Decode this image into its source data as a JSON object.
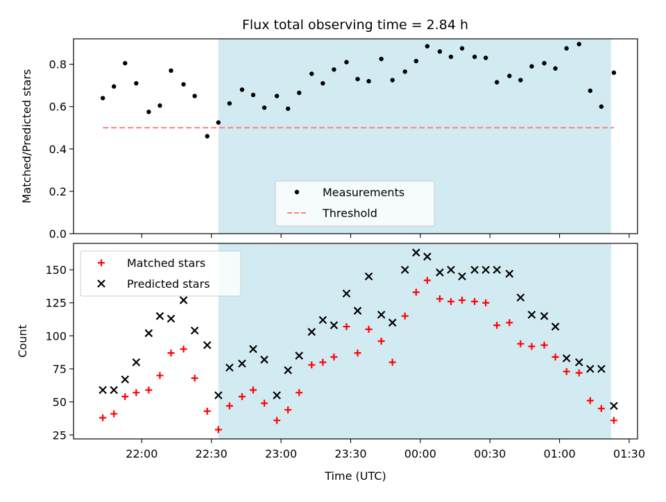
{
  "chart_data": {
    "title": "Flux total observing time = 2.84 h",
    "xlabel": "Time (UTC)",
    "x_ticks": [
      "22:00",
      "22:30",
      "23:00",
      "23:30",
      "00:00",
      "00:30",
      "01:00",
      "01:30"
    ],
    "x_tick_hours": [
      22.0,
      22.5,
      23.0,
      23.5,
      24.0,
      24.5,
      25.0,
      25.5
    ],
    "xlim": [
      21.51,
      25.56
    ],
    "shaded_span": {
      "x_start": 22.55,
      "x_end": 25.37,
      "color": "#add8e6"
    },
    "panels": [
      {
        "type": "scatter",
        "ylabel": "Matched/Predicted stars",
        "ylim": [
          0,
          0.92
        ],
        "y_ticks": [
          "0.0",
          "0.2",
          "0.4",
          "0.6",
          "0.8"
        ],
        "y_tick_values": [
          0,
          0.2,
          0.4,
          0.6,
          0.8
        ],
        "legend_position": "lower-center",
        "series": [
          {
            "name": "Measurements",
            "marker": "dot",
            "color": "#000000",
            "x": [
              21.72,
              21.8,
              21.88,
              21.96,
              22.05,
              22.13,
              22.21,
              22.3,
              22.38,
              22.47,
              22.55,
              22.63,
              22.72,
              22.8,
              22.88,
              22.97,
              23.05,
              23.13,
              23.22,
              23.3,
              23.38,
              23.47,
              23.55,
              23.63,
              23.72,
              23.8,
              23.89,
              23.97,
              24.05,
              24.14,
              24.22,
              24.3,
              24.39,
              24.47,
              24.55,
              24.64,
              24.72,
              24.8,
              24.89,
              24.97,
              25.05,
              25.14,
              25.22,
              25.3,
              25.39
            ],
            "y": [
              0.64,
              0.695,
              0.805,
              0.71,
              0.575,
              0.605,
              0.77,
              0.705,
              0.65,
              0.46,
              0.525,
              0.615,
              0.68,
              0.655,
              0.595,
              0.65,
              0.59,
              0.665,
              0.755,
              0.71,
              0.775,
              0.81,
              0.73,
              0.72,
              0.825,
              0.725,
              0.765,
              0.815,
              0.885,
              0.86,
              0.835,
              0.875,
              0.835,
              0.83,
              0.715,
              0.745,
              0.725,
              0.79,
              0.805,
              0.78,
              0.875,
              0.895,
              0.675,
              0.6,
              0.76
            ]
          },
          {
            "name": "Threshold",
            "marker": "dashed-line",
            "color": "#ff7f7f",
            "x": [
              21.72,
              25.39
            ],
            "y": [
              0.5,
              0.5
            ]
          }
        ]
      },
      {
        "type": "scatter",
        "ylabel": "Count",
        "ylim": [
          22,
          170
        ],
        "y_ticks": [
          "25",
          "50",
          "75",
          "100",
          "125",
          "150"
        ],
        "y_tick_values": [
          25,
          50,
          75,
          100,
          125,
          150
        ],
        "legend_position": "upper-left",
        "series": [
          {
            "name": "Matched stars",
            "marker": "plus",
            "color": "#ff0000",
            "x": [
              21.72,
              21.8,
              21.88,
              21.96,
              22.05,
              22.13,
              22.21,
              22.3,
              22.38,
              22.47,
              22.55,
              22.63,
              22.72,
              22.8,
              22.88,
              22.97,
              23.05,
              23.13,
              23.22,
              23.3,
              23.38,
              23.47,
              23.55,
              23.63,
              23.72,
              23.8,
              23.89,
              23.97,
              24.05,
              24.14,
              24.22,
              24.3,
              24.39,
              24.47,
              24.55,
              24.64,
              24.72,
              24.8,
              24.89,
              24.97,
              25.05,
              25.14,
              25.22,
              25.3,
              25.39
            ],
            "y": [
              38,
              41,
              54,
              57,
              59,
              70,
              87,
              90,
              68,
              43,
              29,
              47,
              54,
              59,
              49,
              36,
              44,
              57,
              78,
              80,
              84,
              107,
              87,
              105,
              96,
              80,
              115,
              133,
              142,
              128,
              126,
              127,
              126,
              125,
              108,
              110,
              94,
              92,
              93,
              84,
              73,
              72,
              51,
              45,
              36
            ]
          },
          {
            "name": "Predicted stars",
            "marker": "x",
            "color": "#000000",
            "x": [
              21.72,
              21.8,
              21.88,
              21.96,
              22.05,
              22.13,
              22.21,
              22.3,
              22.38,
              22.47,
              22.55,
              22.63,
              22.72,
              22.8,
              22.88,
              22.97,
              23.05,
              23.13,
              23.22,
              23.3,
              23.38,
              23.47,
              23.55,
              23.63,
              23.72,
              23.8,
              23.89,
              23.97,
              24.05,
              24.14,
              24.22,
              24.3,
              24.39,
              24.47,
              24.55,
              24.64,
              24.72,
              24.8,
              24.89,
              24.97,
              25.05,
              25.14,
              25.22,
              25.3,
              25.39
            ],
            "y": [
              59,
              59,
              67,
              80,
              102,
              115,
              113,
              127,
              104,
              93,
              55,
              76,
              79,
              90,
              82,
              55,
              74,
              85,
              103,
              112,
              108,
              132,
              119,
              145,
              116,
              110,
              150,
              163,
              160,
              148,
              150,
              145,
              150,
              150,
              150,
              147,
              129,
              116,
              115,
              107,
              83,
              80,
              75,
              75,
              47
            ]
          }
        ]
      }
    ]
  }
}
